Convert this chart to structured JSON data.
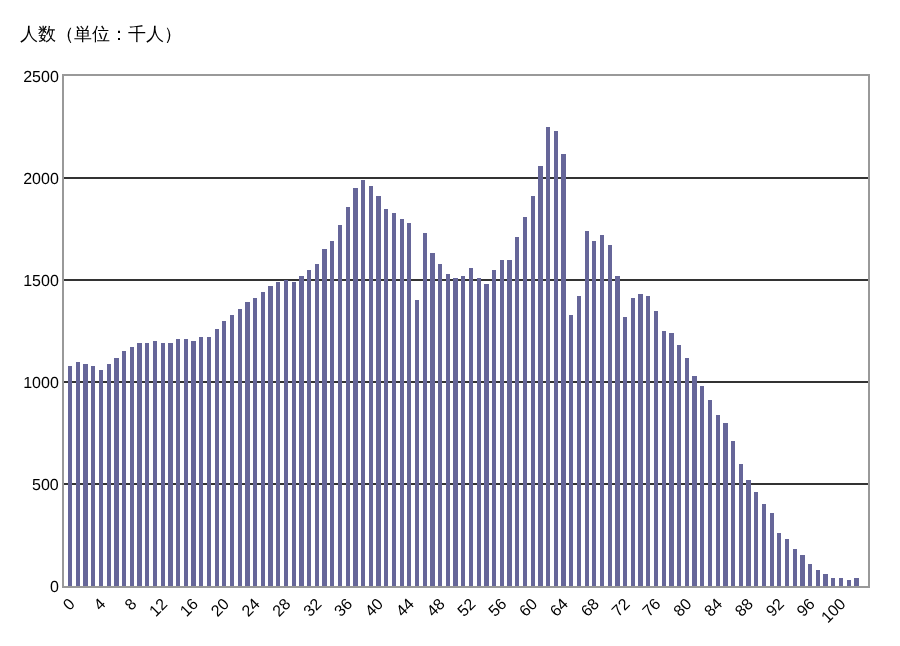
{
  "chart_data": {
    "type": "bar",
    "ylabel": "人数（単位：千人）",
    "x": [
      0,
      1,
      2,
      3,
      4,
      5,
      6,
      7,
      8,
      9,
      10,
      11,
      12,
      13,
      14,
      15,
      16,
      17,
      18,
      19,
      20,
      21,
      22,
      23,
      24,
      25,
      26,
      27,
      28,
      29,
      30,
      31,
      32,
      33,
      34,
      35,
      36,
      37,
      38,
      39,
      40,
      41,
      42,
      43,
      44,
      45,
      46,
      47,
      48,
      49,
      50,
      51,
      52,
      53,
      54,
      55,
      56,
      57,
      58,
      59,
      60,
      61,
      62,
      63,
      64,
      65,
      66,
      67,
      68,
      69,
      70,
      71,
      72,
      73,
      74,
      75,
      76,
      77,
      78,
      79,
      80,
      81,
      82,
      83,
      84,
      85,
      86,
      87,
      88,
      89,
      90,
      91,
      92,
      93,
      94,
      95,
      96,
      97,
      98,
      99,
      100,
      101,
      102
    ],
    "values": [
      1080,
      1100,
      1090,
      1080,
      1060,
      1090,
      1120,
      1150,
      1170,
      1190,
      1190,
      1200,
      1190,
      1190,
      1210,
      1210,
      1200,
      1220,
      1220,
      1260,
      1300,
      1330,
      1360,
      1390,
      1410,
      1440,
      1470,
      1490,
      1500,
      1490,
      1520,
      1550,
      1580,
      1650,
      1690,
      1770,
      1860,
      1950,
      1990,
      1960,
      1910,
      1850,
      1830,
      1800,
      1780,
      1400,
      1730,
      1630,
      1580,
      1530,
      1510,
      1520,
      1560,
      1510,
      1480,
      1550,
      1600,
      1600,
      1710,
      1810,
      1910,
      2060,
      2250,
      2230,
      2120,
      1330,
      1420,
      1740,
      1690,
      1720,
      1670,
      1520,
      1320,
      1410,
      1430,
      1420,
      1350,
      1250,
      1240,
      1180,
      1120,
      1030,
      980,
      910,
      840,
      800,
      710,
      600,
      520,
      460,
      400,
      360,
      260,
      230,
      180,
      150,
      110,
      80,
      60,
      40,
      40,
      30,
      40
    ],
    "color": "#666699",
    "xlim": [
      -0.8,
      103.5
    ],
    "xticks": [
      0,
      4,
      8,
      12,
      16,
      20,
      24,
      28,
      32,
      36,
      40,
      44,
      48,
      52,
      56,
      60,
      64,
      68,
      72,
      76,
      80,
      84,
      88,
      92,
      96,
      100
    ],
    "ylim": [
      0,
      2500
    ],
    "yticks": [
      0,
      500,
      1000,
      1500,
      2000,
      2500
    ],
    "grid": "y"
  }
}
